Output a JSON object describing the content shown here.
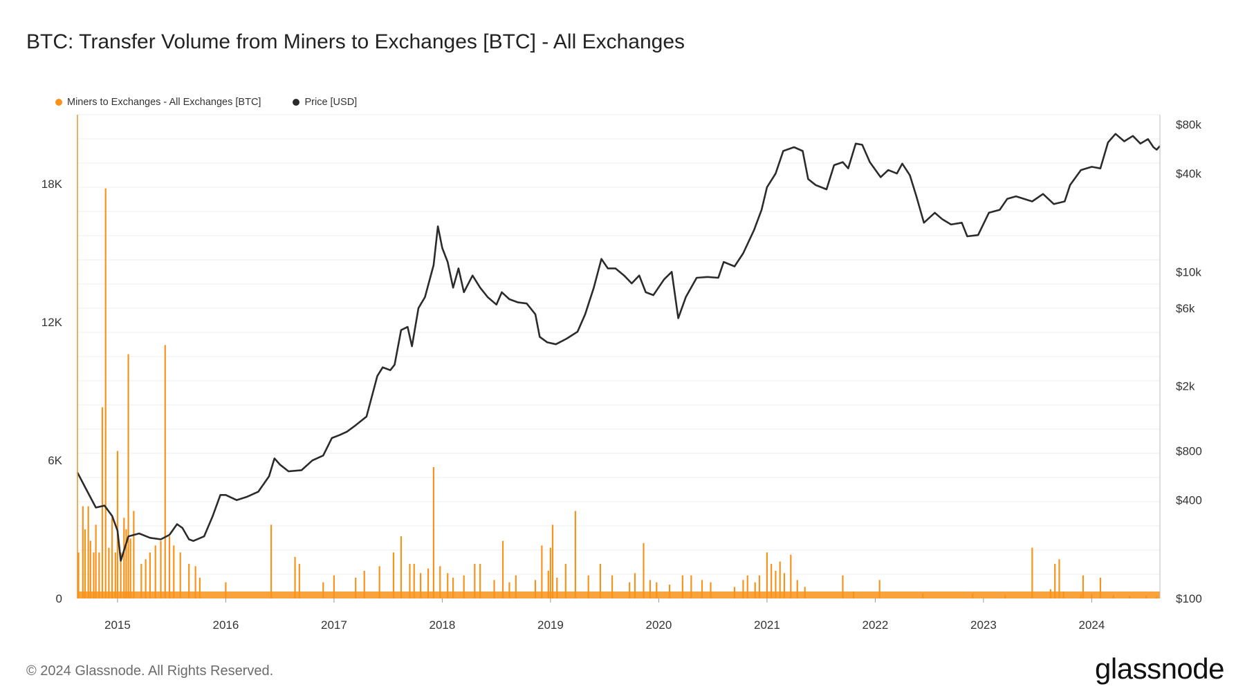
{
  "header": {
    "title": "BTC: Transfer Volume from Miners to Exchanges [BTC] - All Exchanges"
  },
  "footer": {
    "copyright": "© 2024 Glassnode. All Rights Reserved.",
    "brand": "glassnode"
  },
  "colors": {
    "volume": "#f7931a",
    "price": "#2b2b2b",
    "grid": "#ececec"
  },
  "chart_data": {
    "type": "line",
    "title": "BTC: Transfer Volume from Miners to Exchanges [BTC] - All Exchanges",
    "legend": {
      "placement": "top-left",
      "entries": [
        "Miners to Exchanges - All Exchanges [BTC]",
        "Price [USD]"
      ]
    },
    "grid": true,
    "x_range": [
      2014.63,
      2024.63
    ],
    "x_ticks": [
      2015,
      2016,
      2017,
      2018,
      2019,
      2020,
      2021,
      2022,
      2023,
      2024
    ],
    "x_tick_labels": [
      "2015",
      "2016",
      "2017",
      "2018",
      "2019",
      "2020",
      "2021",
      "2022",
      "2023",
      "2024"
    ],
    "y_left": {
      "range": [
        0,
        21000
      ],
      "ticks": [
        0,
        6000,
        12000,
        18000
      ],
      "tick_labels": [
        "0",
        "6K",
        "12K",
        "18K"
      ]
    },
    "y_right": {
      "scale": "log",
      "range": [
        100,
        80000
      ],
      "ticks": [
        100,
        400,
        800,
        2000,
        6000,
        10000,
        40000,
        80000
      ],
      "tick_labels": [
        "$100",
        "$400",
        "$800",
        "$2k",
        "$6k",
        "$10k",
        "$40k",
        "$80k"
      ]
    },
    "series": [
      {
        "name": "Miners to Exchanges - All Exchanges [BTC]",
        "axis": "left",
        "kind": "spikes",
        "baseline": 300,
        "points": [
          [
            2014.64,
            2000
          ],
          [
            2014.68,
            4000
          ],
          [
            2014.7,
            3000
          ],
          [
            2014.73,
            4000
          ],
          [
            2014.75,
            2500
          ],
          [
            2014.78,
            2000
          ],
          [
            2014.8,
            3200
          ],
          [
            2014.83,
            2000
          ],
          [
            2014.86,
            8300
          ],
          [
            2014.89,
            17800
          ],
          [
            2014.92,
            2200
          ],
          [
            2014.95,
            3500
          ],
          [
            2014.98,
            2000
          ],
          [
            2015.0,
            6400
          ],
          [
            2015.03,
            2000
          ],
          [
            2015.06,
            3500
          ],
          [
            2015.08,
            3000
          ],
          [
            2015.1,
            10600
          ],
          [
            2015.12,
            2600
          ],
          [
            2015.15,
            3800
          ],
          [
            2015.22,
            1500
          ],
          [
            2015.26,
            1700
          ],
          [
            2015.3,
            2000
          ],
          [
            2015.35,
            2300
          ],
          [
            2015.4,
            2500
          ],
          [
            2015.44,
            11000
          ],
          [
            2015.48,
            2700
          ],
          [
            2015.52,
            2300
          ],
          [
            2015.58,
            2000
          ],
          [
            2015.66,
            1500
          ],
          [
            2015.72,
            1400
          ],
          [
            2015.76,
            900
          ],
          [
            2016.0,
            700
          ],
          [
            2016.42,
            3200
          ],
          [
            2016.64,
            1800
          ],
          [
            2016.68,
            1500
          ],
          [
            2016.9,
            700
          ],
          [
            2017.0,
            1000
          ],
          [
            2017.2,
            900
          ],
          [
            2017.28,
            1200
          ],
          [
            2017.42,
            1400
          ],
          [
            2017.55,
            2000
          ],
          [
            2017.62,
            2700
          ],
          [
            2017.7,
            1500
          ],
          [
            2017.74,
            1500
          ],
          [
            2017.8,
            1100
          ],
          [
            2017.87,
            1300
          ],
          [
            2017.92,
            5700
          ],
          [
            2017.98,
            1400
          ],
          [
            2018.05,
            1100
          ],
          [
            2018.1,
            900
          ],
          [
            2018.2,
            1000
          ],
          [
            2018.3,
            1500
          ],
          [
            2018.35,
            1500
          ],
          [
            2018.48,
            800
          ],
          [
            2018.56,
            2500
          ],
          [
            2018.62,
            700
          ],
          [
            2018.68,
            1000
          ],
          [
            2018.86,
            800
          ],
          [
            2018.92,
            2300
          ],
          [
            2018.98,
            1200
          ],
          [
            2019.0,
            2200
          ],
          [
            2019.02,
            3200
          ],
          [
            2019.06,
            900
          ],
          [
            2019.14,
            1500
          ],
          [
            2019.23,
            3800
          ],
          [
            2019.35,
            1000
          ],
          [
            2019.46,
            1500
          ],
          [
            2019.57,
            1000
          ],
          [
            2019.73,
            700
          ],
          [
            2019.78,
            1100
          ],
          [
            2019.86,
            2400
          ],
          [
            2019.92,
            800
          ],
          [
            2019.98,
            700
          ],
          [
            2020.1,
            600
          ],
          [
            2020.22,
            1000
          ],
          [
            2020.3,
            1000
          ],
          [
            2020.4,
            800
          ],
          [
            2020.48,
            700
          ],
          [
            2020.7,
            500
          ],
          [
            2020.78,
            800
          ],
          [
            2020.82,
            1000
          ],
          [
            2020.89,
            700
          ],
          [
            2020.93,
            1000
          ],
          [
            2021.0,
            2000
          ],
          [
            2021.04,
            1500
          ],
          [
            2021.08,
            1200
          ],
          [
            2021.12,
            1600
          ],
          [
            2021.16,
            1100
          ],
          [
            2021.22,
            1900
          ],
          [
            2021.28,
            800
          ],
          [
            2021.35,
            500
          ],
          [
            2021.7,
            1000
          ],
          [
            2021.8,
            300
          ],
          [
            2022.04,
            800
          ],
          [
            2022.44,
            200
          ],
          [
            2022.9,
            200
          ],
          [
            2023.2,
            150
          ],
          [
            2023.45,
            2200
          ],
          [
            2023.62,
            400
          ],
          [
            2023.66,
            1500
          ],
          [
            2023.7,
            1700
          ],
          [
            2023.74,
            300
          ],
          [
            2023.9,
            200
          ],
          [
            2023.92,
            1000
          ],
          [
            2024.0,
            200
          ],
          [
            2024.08,
            900
          ],
          [
            2024.2,
            150
          ],
          [
            2024.35,
            100
          ],
          [
            2024.5,
            120
          ],
          [
            2024.6,
            100
          ]
        ]
      },
      {
        "name": "Price [USD]",
        "axis": "right",
        "kind": "line",
        "points": [
          [
            2014.63,
            590
          ],
          [
            2014.7,
            480
          ],
          [
            2014.8,
            360
          ],
          [
            2014.88,
            370
          ],
          [
            2014.95,
            320
          ],
          [
            2015.0,
            260
          ],
          [
            2015.03,
            170
          ],
          [
            2015.1,
            240
          ],
          [
            2015.2,
            250
          ],
          [
            2015.3,
            235
          ],
          [
            2015.4,
            230
          ],
          [
            2015.48,
            245
          ],
          [
            2015.55,
            285
          ],
          [
            2015.6,
            270
          ],
          [
            2015.66,
            230
          ],
          [
            2015.7,
            225
          ],
          [
            2015.8,
            240
          ],
          [
            2015.88,
            320
          ],
          [
            2015.95,
            430
          ],
          [
            2016.0,
            430
          ],
          [
            2016.1,
            400
          ],
          [
            2016.2,
            420
          ],
          [
            2016.3,
            450
          ],
          [
            2016.4,
            560
          ],
          [
            2016.45,
            720
          ],
          [
            2016.5,
            660
          ],
          [
            2016.58,
            600
          ],
          [
            2016.7,
            610
          ],
          [
            2016.8,
            700
          ],
          [
            2016.9,
            750
          ],
          [
            2016.98,
            960
          ],
          [
            2017.05,
            1000
          ],
          [
            2017.12,
            1050
          ],
          [
            2017.2,
            1150
          ],
          [
            2017.3,
            1300
          ],
          [
            2017.4,
            2300
          ],
          [
            2017.45,
            2600
          ],
          [
            2017.52,
            2500
          ],
          [
            2017.56,
            2700
          ],
          [
            2017.62,
            4400
          ],
          [
            2017.68,
            4600
          ],
          [
            2017.72,
            3500
          ],
          [
            2017.78,
            6000
          ],
          [
            2017.84,
            7000
          ],
          [
            2017.92,
            11000
          ],
          [
            2017.96,
            19000
          ],
          [
            2018.0,
            14000
          ],
          [
            2018.05,
            11500
          ],
          [
            2018.1,
            8000
          ],
          [
            2018.15,
            10500
          ],
          [
            2018.2,
            7500
          ],
          [
            2018.28,
            9500
          ],
          [
            2018.35,
            8000
          ],
          [
            2018.42,
            7000
          ],
          [
            2018.5,
            6300
          ],
          [
            2018.55,
            7500
          ],
          [
            2018.62,
            6800
          ],
          [
            2018.7,
            6500
          ],
          [
            2018.78,
            6400
          ],
          [
            2018.86,
            5500
          ],
          [
            2018.9,
            4000
          ],
          [
            2018.97,
            3700
          ],
          [
            2019.05,
            3600
          ],
          [
            2019.15,
            3900
          ],
          [
            2019.25,
            4300
          ],
          [
            2019.32,
            5500
          ],
          [
            2019.4,
            8000
          ],
          [
            2019.47,
            12000
          ],
          [
            2019.53,
            10500
          ],
          [
            2019.6,
            10500
          ],
          [
            2019.68,
            9500
          ],
          [
            2019.75,
            8500
          ],
          [
            2019.82,
            9500
          ],
          [
            2019.88,
            7500
          ],
          [
            2019.95,
            7200
          ],
          [
            2020.05,
            9000
          ],
          [
            2020.12,
            10000
          ],
          [
            2020.18,
            5200
          ],
          [
            2020.25,
            7000
          ],
          [
            2020.35,
            9200
          ],
          [
            2020.45,
            9300
          ],
          [
            2020.55,
            9200
          ],
          [
            2020.6,
            11500
          ],
          [
            2020.7,
            10800
          ],
          [
            2020.78,
            13000
          ],
          [
            2020.88,
            18000
          ],
          [
            2020.95,
            24000
          ],
          [
            2021.0,
            33000
          ],
          [
            2021.08,
            40000
          ],
          [
            2021.15,
            55000
          ],
          [
            2021.25,
            58000
          ],
          [
            2021.33,
            55000
          ],
          [
            2021.38,
            37000
          ],
          [
            2021.45,
            34000
          ],
          [
            2021.55,
            32000
          ],
          [
            2021.62,
            45000
          ],
          [
            2021.7,
            47000
          ],
          [
            2021.75,
            43000
          ],
          [
            2021.82,
            61000
          ],
          [
            2021.88,
            60000
          ],
          [
            2021.95,
            47000
          ],
          [
            2022.05,
            38000
          ],
          [
            2022.12,
            42000
          ],
          [
            2022.2,
            40000
          ],
          [
            2022.25,
            46000
          ],
          [
            2022.32,
            39000
          ],
          [
            2022.38,
            29000
          ],
          [
            2022.45,
            20000
          ],
          [
            2022.55,
            23000
          ],
          [
            2022.62,
            21000
          ],
          [
            2022.7,
            19500
          ],
          [
            2022.8,
            20000
          ],
          [
            2022.85,
            16500
          ],
          [
            2022.95,
            16800
          ],
          [
            2023.05,
            23000
          ],
          [
            2023.15,
            24000
          ],
          [
            2023.22,
            28000
          ],
          [
            2023.3,
            29000
          ],
          [
            2023.45,
            27000
          ],
          [
            2023.55,
            30000
          ],
          [
            2023.65,
            26000
          ],
          [
            2023.75,
            27000
          ],
          [
            2023.8,
            34000
          ],
          [
            2023.9,
            42000
          ],
          [
            2024.0,
            44000
          ],
          [
            2024.08,
            43000
          ],
          [
            2024.15,
            62000
          ],
          [
            2024.22,
            70000
          ],
          [
            2024.3,
            63000
          ],
          [
            2024.38,
            68000
          ],
          [
            2024.45,
            61000
          ],
          [
            2024.52,
            65000
          ],
          [
            2024.57,
            58000
          ],
          [
            2024.6,
            56000
          ],
          [
            2024.63,
            59000
          ]
        ]
      }
    ]
  }
}
